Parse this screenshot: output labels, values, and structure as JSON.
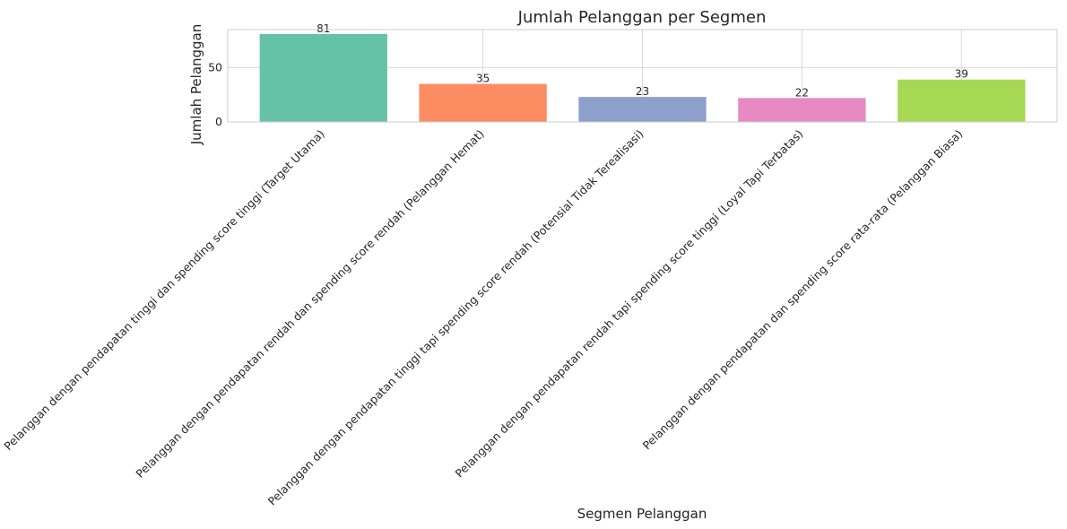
{
  "chart_data": {
    "type": "bar",
    "title": "Jumlah Pelanggan per Segmen",
    "xlabel": "Segmen Pelanggan",
    "ylabel": "Jumlah Pelanggan",
    "categories": [
      "Pelanggan dengan pendapatan tinggi dan spending score tinggi (Target Utama)",
      "Pelanggan dengan pendapatan rendah dan spending score rendah (Pelanggan Hemat)",
      "Pelanggan dengan pendapatan tinggi tapi spending score rendah (Potensial Tidak Terealisasi)",
      "Pelanggan dengan pendapatan rendah tapi spending score tinggi (Loyal Tapi Terbatas)",
      "Pelanggan dengan pendapatan dan spending score rata-rata (Pelanggan Biasa)"
    ],
    "values": [
      81,
      35,
      23,
      22,
      39
    ],
    "colors": [
      "#66c2a5",
      "#fc8d62",
      "#8da0cb",
      "#e78ac3",
      "#a6d854"
    ],
    "ylim": [
      0,
      85
    ],
    "yticks": [
      0,
      50
    ],
    "grid": true,
    "legend": false
  }
}
